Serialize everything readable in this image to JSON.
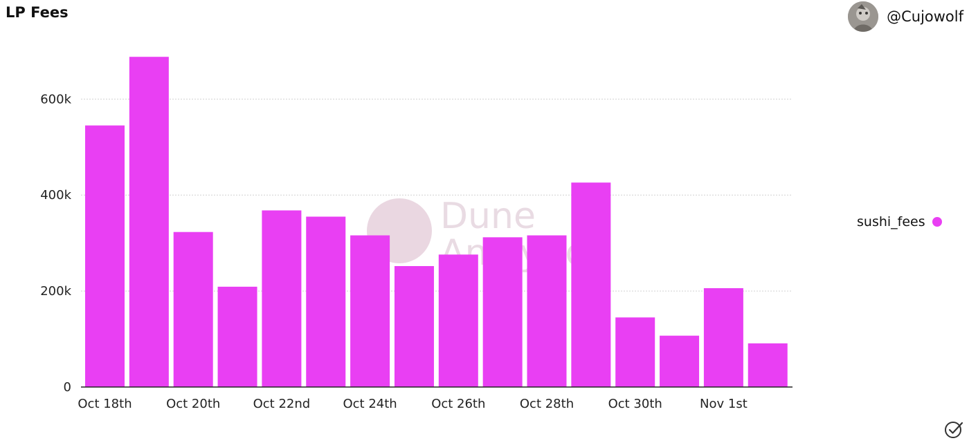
{
  "header": {
    "title": "LP Fees",
    "author": "@Cujowolf"
  },
  "watermark": {
    "line1": "Dune",
    "line2": "Analytics"
  },
  "legend": {
    "label": "sushi_fees"
  },
  "colors": {
    "bar": "#e93ff3",
    "grid": "#d0d0d0",
    "axis": "#222222",
    "watermark_circle": "#ead7e1",
    "watermark_text": "#e9dbe3"
  },
  "icons": {
    "avatar": "avatar-image",
    "status": "check-circle-icon"
  },
  "chart_data": {
    "type": "bar",
    "title": "LP Fees",
    "xlabel": "",
    "ylabel": "",
    "categories": [
      "Oct 18th",
      "Oct 19th",
      "Oct 20th",
      "Oct 21st",
      "Oct 22nd",
      "Oct 23rd",
      "Oct 24th",
      "Oct 25th",
      "Oct 26th",
      "Oct 27th",
      "Oct 28th",
      "Oct 29th",
      "Oct 30th",
      "Oct 31st",
      "Nov 1st",
      "Nov 2nd"
    ],
    "x_tick_labels": [
      "Oct 18th",
      "Oct 20th",
      "Oct 22nd",
      "Oct 24th",
      "Oct 26th",
      "Oct 28th",
      "Oct 30th",
      "Nov 1st"
    ],
    "series": [
      {
        "name": "sushi_fees",
        "values": [
          545000,
          688000,
          323000,
          209000,
          368000,
          355000,
          316000,
          252000,
          276000,
          312000,
          316000,
          426000,
          145000,
          107000,
          206000,
          91000
        ]
      }
    ],
    "y_ticks": [
      0,
      200000,
      400000,
      600000
    ],
    "y_tick_labels": [
      "0",
      "200k",
      "400k",
      "600k"
    ],
    "ylim": [
      0,
      720000
    ],
    "grid": true,
    "legend_position": "right"
  }
}
